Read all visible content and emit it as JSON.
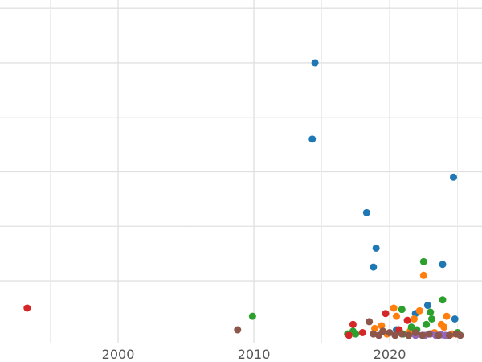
{
  "chart_data": {
    "type": "scatter",
    "title": "",
    "xlabel": "",
    "ylabel": "",
    "xlim": [
      1991.3,
      2026.8
    ],
    "ylim": [
      -0.3,
      12.3
    ],
    "x_ticks": [
      2000,
      2010,
      2020
    ],
    "x_tick_labels": [
      "2000",
      "2010",
      "2020"
    ],
    "y_gridlines": [
      2,
      4,
      6,
      8,
      10,
      12
    ],
    "x_gridlines_minor": [
      1995,
      2005,
      2015,
      2025
    ],
    "grid": true,
    "legend": "none",
    "series": [
      {
        "name": "blue",
        "color": "#1f77b4",
        "points": [
          [
            2014.5,
            10.0
          ],
          [
            2014.3,
            7.2
          ],
          [
            2024.7,
            5.8
          ],
          [
            2018.3,
            4.5
          ],
          [
            2019.0,
            3.2
          ],
          [
            2018.8,
            2.5
          ],
          [
            2023.9,
            2.6
          ],
          [
            2022.8,
            1.1
          ],
          [
            2024.8,
            0.6
          ],
          [
            2021.9,
            0.8
          ],
          [
            2020.5,
            0.2
          ],
          [
            2022.0,
            0.05
          ]
        ]
      },
      {
        "name": "orange",
        "color": "#ff7f0e",
        "points": [
          [
            2022.5,
            2.2
          ],
          [
            2020.3,
            1.0
          ],
          [
            2020.5,
            0.7
          ],
          [
            2022.2,
            0.9
          ],
          [
            2024.2,
            0.7
          ],
          [
            2019.4,
            0.35
          ],
          [
            2023.8,
            0.4
          ],
          [
            2021.8,
            0.6
          ],
          [
            2024.0,
            0.3
          ],
          [
            2018.9,
            0.25
          ],
          [
            2023.3,
            0.1
          ],
          [
            2021.5,
            0.15
          ],
          [
            2019.8,
            0.05
          ],
          [
            2024.6,
            0.05
          ]
        ]
      },
      {
        "name": "green",
        "color": "#2ca02c",
        "points": [
          [
            2022.5,
            2.7
          ],
          [
            2023.9,
            1.3
          ],
          [
            2009.9,
            0.7
          ],
          [
            2020.9,
            0.95
          ],
          [
            2023.0,
            0.85
          ],
          [
            2022.7,
            0.4
          ],
          [
            2017.3,
            0.15
          ],
          [
            2016.9,
            0.05
          ],
          [
            2021.6,
            0.3
          ],
          [
            2023.1,
            0.6
          ],
          [
            2025.0,
            0.1
          ],
          [
            2022.0,
            0.2
          ],
          [
            2017.5,
            0.05
          ],
          [
            2021.0,
            0.05
          ]
        ]
      },
      {
        "name": "red",
        "color": "#d62728",
        "points": [
          [
            1993.3,
            1.0
          ],
          [
            2017.3,
            0.4
          ],
          [
            2019.7,
            0.8
          ],
          [
            2021.3,
            0.55
          ],
          [
            2018.0,
            0.1
          ],
          [
            2020.7,
            0.2
          ],
          [
            2017.0,
            0.0
          ]
        ]
      },
      {
        "name": "purple",
        "color": "#9467bd",
        "points": [
          [
            2022.6,
            0.0
          ],
          [
            2023.0,
            0.05
          ],
          [
            2023.4,
            0.0
          ],
          [
            2023.8,
            0.02
          ],
          [
            2024.1,
            0.0
          ],
          [
            2021.9,
            0.0
          ]
        ]
      },
      {
        "name": "brown",
        "color": "#8c564b",
        "points": [
          [
            2008.8,
            0.2
          ],
          [
            2018.5,
            0.5
          ],
          [
            2020.0,
            0.1
          ],
          [
            2018.8,
            0.05
          ],
          [
            2019.2,
            0.0
          ],
          [
            2019.5,
            0.15
          ],
          [
            2020.4,
            0.0
          ],
          [
            2020.9,
            0.05
          ],
          [
            2021.4,
            0.0
          ],
          [
            2021.9,
            0.1
          ],
          [
            2022.4,
            0.0
          ],
          [
            2022.9,
            0.05
          ],
          [
            2024.4,
            0.0
          ],
          [
            2024.9,
            0.05
          ],
          [
            2025.2,
            0.0
          ],
          [
            2023.6,
            0.0
          ]
        ]
      }
    ]
  }
}
